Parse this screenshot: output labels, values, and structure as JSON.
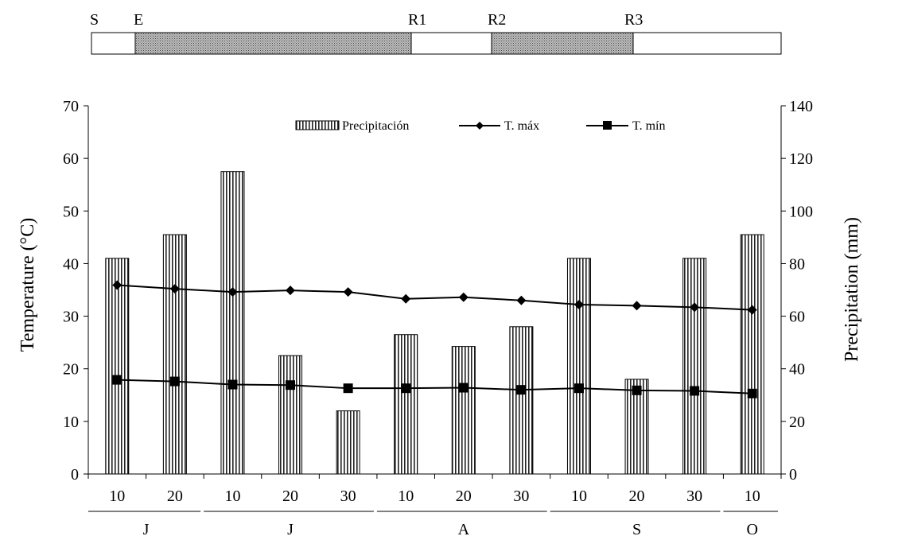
{
  "chart_data": {
    "type": "bar+line",
    "left_axis": {
      "label": "Temperature (°C)",
      "range": [
        0,
        70
      ],
      "ticks": [
        "0",
        "10",
        "20",
        "30",
        "40",
        "50",
        "60",
        "70"
      ]
    },
    "right_axis": {
      "label": "Precipitation (mm)",
      "range": [
        0,
        140
      ],
      "ticks": [
        "0",
        "20",
        "40",
        "60",
        "80",
        "100",
        "120",
        "140"
      ]
    },
    "categories": [
      "10",
      "20",
      "10",
      "20",
      "30",
      "10",
      "20",
      "30",
      "10",
      "20",
      "30",
      "10"
    ],
    "month_groups": [
      {
        "label": "J",
        "count": 2
      },
      {
        "label": "J",
        "count": 3
      },
      {
        "label": "A",
        "count": 3
      },
      {
        "label": "S",
        "count": 3
      },
      {
        "label": "O",
        "count": 1
      }
    ],
    "series": [
      {
        "name": "Precipitación",
        "kind": "bar",
        "axis": "right",
        "values": [
          82,
          91,
          115,
          45,
          24,
          53,
          48.5,
          56,
          82,
          36,
          82,
          91
        ]
      },
      {
        "name": "T. máx",
        "kind": "line",
        "marker": "diamond",
        "axis": "left",
        "values": [
          35.9,
          35.2,
          34.6,
          34.9,
          34.6,
          33.3,
          33.6,
          33.0,
          32.2,
          32.0,
          31.7,
          31.2
        ]
      },
      {
        "name": "T. mín",
        "kind": "line",
        "marker": "square",
        "axis": "left",
        "values": [
          17.9,
          17.6,
          17.0,
          16.9,
          16.3,
          16.3,
          16.4,
          16.0,
          16.3,
          15.9,
          15.8,
          15.3
        ]
      }
    ],
    "legend_position": "top-center",
    "grid": false,
    "stages": {
      "labels": [
        "S",
        "E",
        "R1",
        "R2",
        "R3"
      ],
      "shaded_periods": [
        [
          "E",
          "R1"
        ],
        [
          "R2",
          "R3"
        ]
      ]
    }
  }
}
